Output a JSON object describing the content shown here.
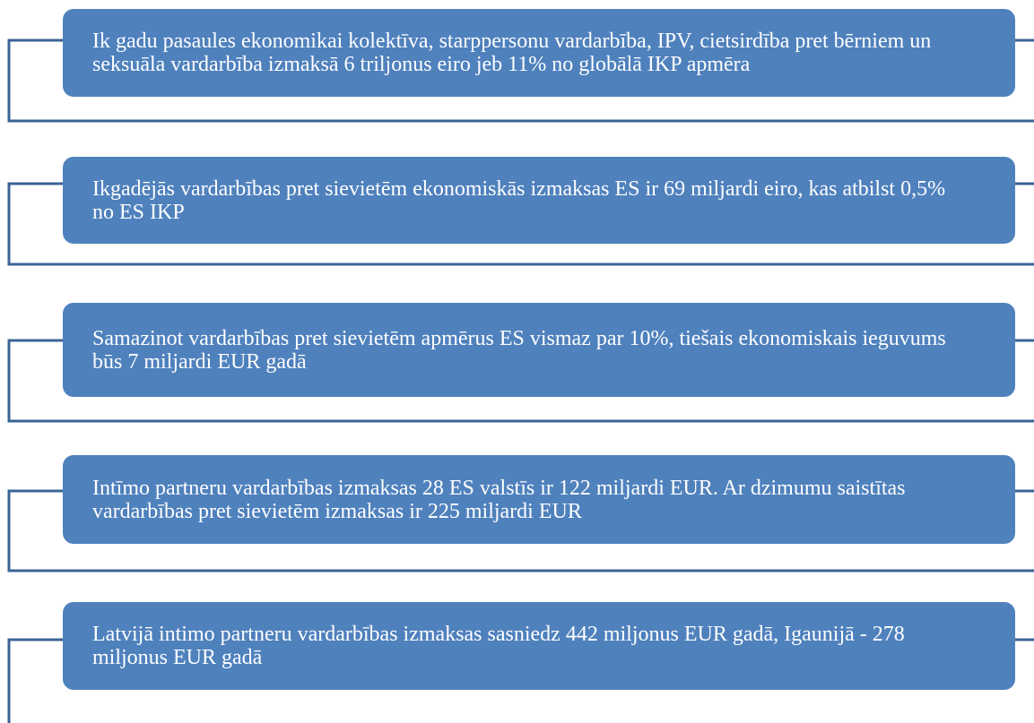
{
  "items": [
    "Ik gadu pasaules ekonomikai kolektīva, starppersonu vardarbība, IPV, cietsirdība pret bērniem un seksuāla vardarbība izmaksā 6 triljonus eiro jeb 11% no globālā IKP apmēra",
    "Ikgadējās vardarbības pret sievietēm ekonomiskās izmaksas ES ir 69 miljardi eiro, kas atbilst 0,5% no ES IKP",
    "Samazinot vardarbības pret sievietēm apmērus ES vismaz par 10%, tiešais ekonomiskais ieguvums būs 7 miljardi EUR gadā",
    "Intīmo partneru vardarbības izmaksas 28 ES valstīs ir 122 miljardi EUR. Ar dzimumu saistītas vardarbības pret sievietēm izmaksas ir 225 miljardi EUR",
    "Latvijā intimo partneru vardarbības izmaksas sasniedz 442 miljonus EUR gadā, Igaunijā - 278 miljonus EUR gadā"
  ]
}
